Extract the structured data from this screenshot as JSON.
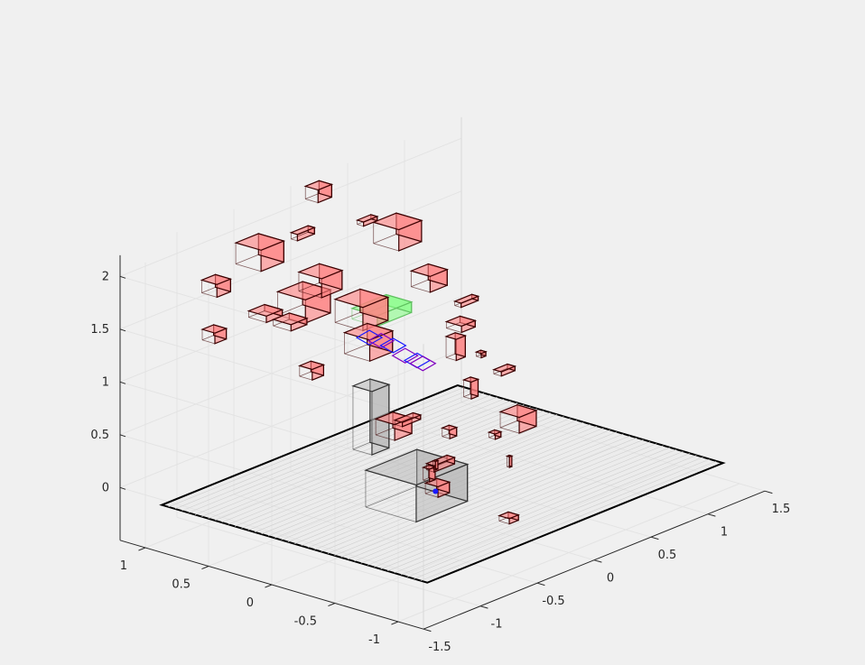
{
  "figure": {
    "background": "#f0f0f0"
  },
  "chart_data": {
    "type": "scatter",
    "title": "",
    "xlabel": "",
    "ylabel": "",
    "zlabel": "",
    "view": "3d",
    "grid": true,
    "xlim": [
      -1.5,
      1.5
    ],
    "ylim": [
      -1.2,
      1.2
    ],
    "zlim": [
      -0.5,
      2.2
    ],
    "xticks": [
      "-1.5",
      "-1",
      "-0.5",
      "0",
      "0.5",
      "1",
      "1.5"
    ],
    "xtick_values": [
      -1.5,
      -1,
      -0.5,
      0,
      0.5,
      1,
      1.5
    ],
    "yticks": [
      "-1",
      "-0.5",
      "0",
      "0.5",
      "1"
    ],
    "ytick_values": [
      -1,
      -0.5,
      0,
      0.5,
      1
    ],
    "zticks": [
      "0",
      "0.5",
      "1",
      "1.5",
      "2"
    ],
    "ztick_values": [
      0,
      0.5,
      1,
      1.5,
      2
    ],
    "colors": {
      "obstacle_fill": "#ff8080",
      "obstacle_edge": "#3a0000",
      "robot_fill": "#b0b0b0",
      "robot_edge": "#333333",
      "floor_edge": "#000000",
      "path_blue": "#1a1aff",
      "path_purple": "#8000c0",
      "goal_green": "#80ff80"
    },
    "floor": {
      "z": -0.2,
      "x": [
        -1.3,
        1.3
      ],
      "y": [
        -1.05,
        1.05
      ]
    },
    "obstacles": [
      {
        "c": [
          -0.55,
          0.95,
          1.9
        ],
        "s": [
          0.2,
          0.2,
          0.2
        ]
      },
      {
        "c": [
          0.05,
          1.15,
          1.75
        ],
        "s": [
          0.15,
          0.05,
          0.06
        ]
      },
      {
        "c": [
          0.3,
          1.25,
          2.0
        ],
        "s": [
          0.12,
          0.1,
          0.12
        ]
      },
      {
        "c": [
          -0.55,
          0.6,
          1.55
        ],
        "s": [
          0.22,
          0.22,
          0.22
        ]
      },
      {
        "c": [
          -0.35,
          0.65,
          1.65
        ],
        "s": [
          0.18,
          0.18,
          0.18
        ]
      },
      {
        "c": [
          0.55,
          0.85,
          1.65
        ],
        "s": [
          0.2,
          0.2,
          0.2
        ]
      },
      {
        "c": [
          0.45,
          1.0,
          1.75
        ],
        "s": [
          0.12,
          0.05,
          0.04
        ]
      },
      {
        "c": [
          -0.6,
          1.25,
          1.5
        ],
        "s": [
          0.12,
          0.12,
          0.12
        ]
      },
      {
        "c": [
          -0.95,
          0.95,
          1.3
        ],
        "s": [
          0.1,
          0.1,
          0.1
        ]
      },
      {
        "c": [
          -0.5,
          0.95,
          1.3
        ],
        "s": [
          0.14,
          0.14,
          0.06
        ]
      },
      {
        "c": [
          -0.45,
          0.8,
          1.25
        ],
        "s": [
          0.14,
          0.14,
          0.06
        ]
      },
      {
        "c": [
          0.55,
          0.6,
          1.3
        ],
        "s": [
          0.15,
          0.15,
          0.15
        ]
      },
      {
        "c": [
          -0.1,
          0.55,
          1.3
        ],
        "s": [
          0.22,
          0.22,
          0.22
        ]
      },
      {
        "c": [
          -0.15,
          0.45,
          1.05
        ],
        "s": [
          0.2,
          0.2,
          0.2
        ]
      },
      {
        "c": [
          0.6,
          0.35,
          1.15
        ],
        "s": [
          0.15,
          0.05,
          0.04
        ]
      },
      {
        "c": [
          0.55,
          0.35,
          0.95
        ],
        "s": [
          0.12,
          0.12,
          0.06
        ]
      },
      {
        "c": [
          -0.65,
          0.45,
          1.0
        ],
        "s": [
          0.1,
          0.1,
          0.1
        ]
      },
      {
        "c": [
          0.45,
          0.3,
          0.8
        ],
        "s": [
          0.08,
          0.08,
          0.2
        ]
      },
      {
        "c": [
          0.45,
          0.1,
          0.8
        ],
        "s": [
          0.04,
          0.04,
          0.04
        ]
      },
      {
        "c": [
          0.6,
          0.05,
          0.6
        ],
        "s": [
          0.12,
          0.06,
          0.04
        ]
      },
      {
        "c": [
          0.25,
          0.0,
          0.6
        ],
        "s": [
          0.06,
          0.06,
          0.16
        ]
      },
      {
        "c": [
          -0.65,
          -0.2,
          0.7
        ],
        "s": [
          0.15,
          0.15,
          0.15
        ]
      },
      {
        "c": [
          -0.25,
          0.05,
          0.5
        ],
        "s": [
          0.16,
          0.06,
          0.04
        ]
      },
      {
        "c": [
          -0.05,
          -0.1,
          0.35
        ],
        "s": [
          0.06,
          0.06,
          0.08
        ]
      },
      {
        "c": [
          -0.6,
          -0.5,
          0.2
        ],
        "s": [
          0.1,
          0.1,
          0.1
        ]
      },
      {
        "c": [
          -0.45,
          -0.3,
          0.2
        ],
        "s": [
          0.05,
          0.05,
          0.12
        ]
      },
      {
        "c": [
          0.5,
          -0.15,
          0.25
        ],
        "s": [
          0.15,
          0.15,
          0.15
        ]
      },
      {
        "c": [
          0.35,
          -0.1,
          0.15
        ],
        "s": [
          0.05,
          0.05,
          0.05
        ]
      },
      {
        "c": [
          0.2,
          -0.35,
          0.05
        ],
        "s": [
          0.02,
          0.02,
          0.1
        ]
      },
      {
        "c": [
          -0.25,
          -0.75,
          -0.15
        ],
        "s": [
          0.08,
          0.08,
          0.05
        ]
      },
      {
        "c": [
          -0.35,
          -0.3,
          0.25
        ],
        "s": [
          0.18,
          0.06,
          0.06
        ]
      },
      {
        "c": [
          -0.45,
          -0.35,
          0.3
        ],
        "s": [
          0.02,
          0.02,
          0.08
        ]
      }
    ],
    "robot": [
      {
        "c": [
          -0.45,
          -0.2,
          0.05
        ],
        "s": [
          0.45,
          0.4,
          0.35
        ]
      },
      {
        "c": [
          -0.35,
          0.25,
          0.5
        ],
        "s": [
          0.15,
          0.15,
          0.6
        ]
      }
    ],
    "path_points": [
      [
        -0.22,
        0.38,
        1.15
      ],
      [
        -0.15,
        0.35,
        1.1
      ],
      [
        -0.1,
        0.3,
        1.05
      ],
      [
        -0.05,
        0.25,
        0.95
      ],
      [
        0.0,
        0.2,
        0.9
      ],
      [
        0.05,
        0.2,
        0.85
      ],
      [
        -0.45,
        -0.35,
        0.05
      ]
    ],
    "goal_region": {
      "c": [
        0.3,
        0.75,
        1.05
      ],
      "s": [
        0.3,
        0.2,
        0.1
      ]
    }
  }
}
